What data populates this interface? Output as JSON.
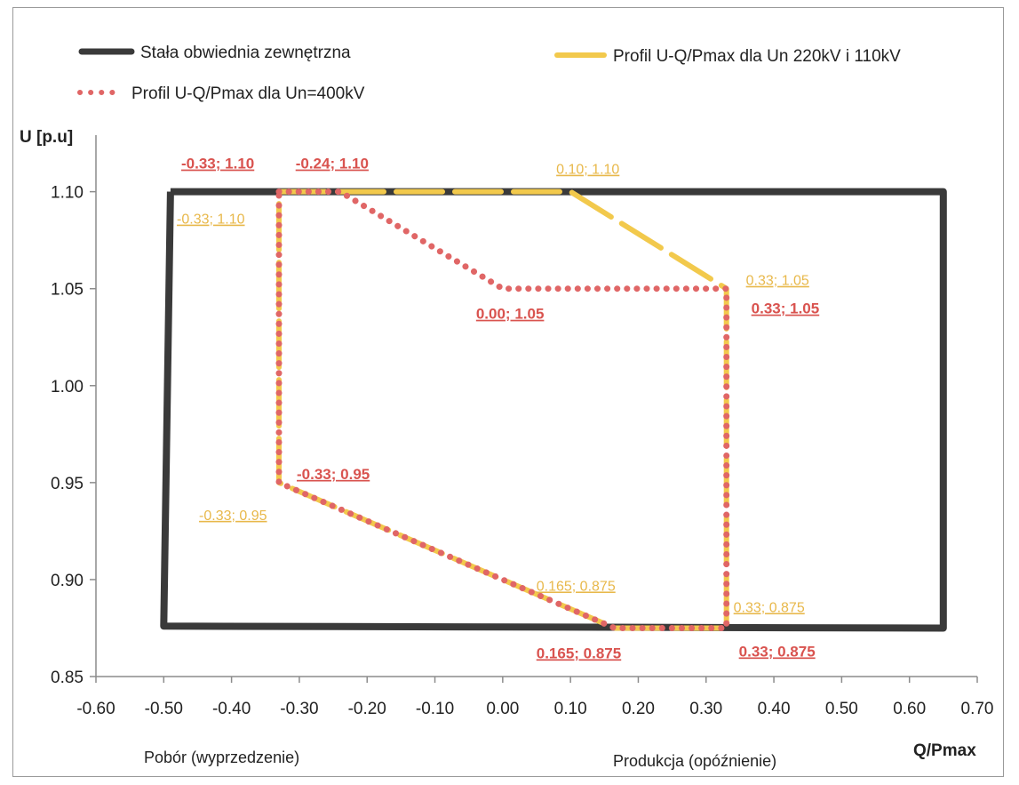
{
  "chart_data": {
    "type": "line",
    "xlabel": "Q/Pmax",
    "ylabel": "U [p.u]",
    "xlim": [
      -0.6,
      0.7
    ],
    "ylim": [
      0.85,
      1.12
    ],
    "x_ticks": [
      "-0.60",
      "-0.50",
      "-0.40",
      "-0.30",
      "-0.20",
      "-0.10",
      "0.00",
      "0.10",
      "0.20",
      "0.30",
      "0.40",
      "0.50",
      "0.60",
      "0.70"
    ],
    "y_ticks": [
      "0.85",
      "0.90",
      "0.95",
      "1.00",
      "1.05",
      "1.10"
    ],
    "x_tick_values": [
      -0.6,
      -0.5,
      -0.4,
      -0.3,
      -0.2,
      -0.1,
      0.0,
      0.1,
      0.2,
      0.3,
      0.4,
      0.5,
      0.6,
      0.7
    ],
    "y_tick_values": [
      0.85,
      0.9,
      0.95,
      1.0,
      1.05,
      1.1
    ],
    "left_caption": "Pobór (wyprzedzenie)",
    "right_caption": "Produkcja (opóźnienie)",
    "grid": false,
    "legend_placement": "top",
    "series": [
      {
        "name": "Stała obwiednia zewnętrzna",
        "style": "solid",
        "color": "#3a3a3a",
        "x": [
          -0.49,
          0.65,
          0.65,
          -0.5,
          -0.49
        ],
        "y": [
          1.1,
          1.1,
          0.875,
          0.876,
          1.1
        ]
      },
      {
        "name": "Profil U-Q/Pmax dla Un 220kV i 110kV",
        "style": "dashed",
        "color": "#f2c94c",
        "x": [
          -0.33,
          0.1,
          0.33,
          0.33,
          0.165,
          -0.33,
          -0.33
        ],
        "y": [
          1.1,
          1.1,
          1.05,
          0.875,
          0.875,
          0.95,
          1.1
        ]
      },
      {
        "name": "Profil U-Q/Pmax dla Un=400kV",
        "style": "dotted",
        "color": "#e06666",
        "x": [
          -0.33,
          -0.24,
          0.0,
          0.33,
          0.33,
          0.165,
          -0.33,
          -0.33
        ],
        "y": [
          1.1,
          1.1,
          1.05,
          1.05,
          0.875,
          0.875,
          0.95,
          1.1
        ]
      }
    ],
    "annotations": [
      {
        "text": "-0.33; 1.10",
        "color": "red",
        "x": -0.33,
        "y": 1.1,
        "pos": "above-left"
      },
      {
        "text": "-0.24; 1.10",
        "color": "red",
        "x": -0.24,
        "y": 1.1,
        "pos": "above"
      },
      {
        "text": "0.10; 1.10",
        "color": "yellow",
        "x": 0.1,
        "y": 1.1,
        "pos": "above"
      },
      {
        "text": "-0.33; 1.10",
        "color": "yellow",
        "x": -0.33,
        "y": 1.1,
        "pos": "below-left"
      },
      {
        "text": "0.33; 1.05",
        "color": "yellow",
        "x": 0.33,
        "y": 1.05,
        "pos": "right-above"
      },
      {
        "text": "0.33; 1.05",
        "color": "red",
        "x": 0.33,
        "y": 1.05,
        "pos": "right-below"
      },
      {
        "text": "0.00; 1.05",
        "color": "red",
        "x": 0.0,
        "y": 1.05,
        "pos": "below"
      },
      {
        "text": "-0.33; 0.95",
        "color": "red",
        "x": -0.33,
        "y": 0.95,
        "pos": "right-above"
      },
      {
        "text": "-0.33; 0.95",
        "color": "yellow",
        "x": -0.33,
        "y": 0.95,
        "pos": "below-left"
      },
      {
        "text": "0.165; 0.875",
        "color": "yellow",
        "x": 0.165,
        "y": 0.875,
        "pos": "above"
      },
      {
        "text": "0.165; 0.875",
        "color": "red",
        "x": 0.165,
        "y": 0.875,
        "pos": "below"
      },
      {
        "text": "0.33; 0.875",
        "color": "yellow",
        "x": 0.33,
        "y": 0.875,
        "pos": "right-above"
      },
      {
        "text": "0.33; 0.875",
        "color": "red",
        "x": 0.33,
        "y": 0.875,
        "pos": "right-below"
      }
    ]
  }
}
